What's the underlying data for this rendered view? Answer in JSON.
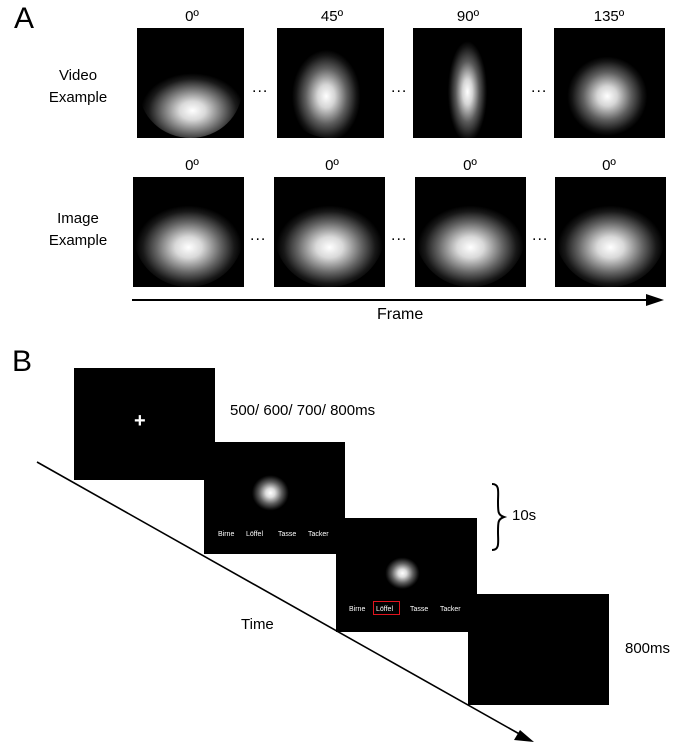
{
  "panel_a": {
    "label": "A",
    "video_row": {
      "label_line1": "Video",
      "label_line2": "Example",
      "angles": [
        "0º",
        "45º",
        "90º",
        "135º"
      ]
    },
    "image_row": {
      "label_line1": "Image",
      "label_line2": "Example",
      "angles": [
        "0º",
        "0º",
        "0º",
        "0º"
      ]
    },
    "ellipsis": "...",
    "axis_label": "Frame"
  },
  "panel_b": {
    "label": "B",
    "fixation": "+",
    "fixation_duration": "500/ 600/ 700/ 800ms",
    "response_duration": "10s",
    "final_duration": "800ms",
    "time_label": "Time",
    "options": [
      "Birne",
      "Löffel",
      "Tasse",
      "Tacker"
    ],
    "selected_color": "#e0141e"
  }
}
